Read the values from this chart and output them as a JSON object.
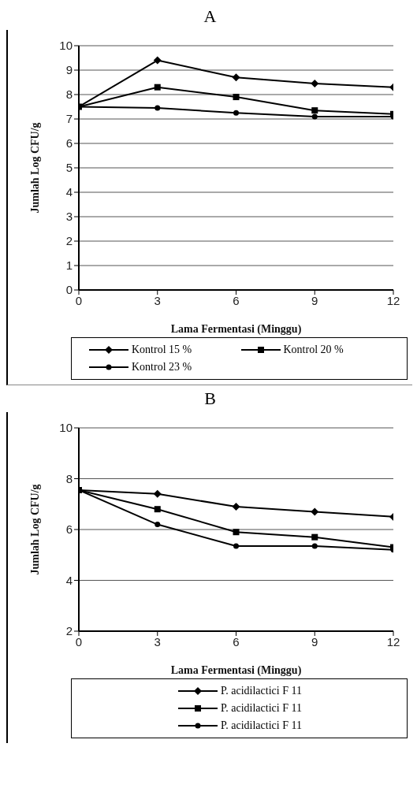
{
  "chart_data": [
    {
      "type": "line",
      "title": "A",
      "xlabel": "Lama Fermentasi (Minggu)",
      "ylabel": "Jumlah Log CFU/g",
      "x": [
        0,
        3,
        6,
        9,
        12
      ],
      "xlim": [
        0,
        12
      ],
      "xticks": [
        0,
        3,
        6,
        9,
        12
      ],
      "ylim": [
        0,
        10
      ],
      "yticks": [
        0,
        1,
        2,
        3,
        4,
        5,
        6,
        7,
        8,
        9,
        10
      ],
      "grid": "y",
      "legend": "bottom",
      "line_style": "solid",
      "series": [
        {
          "name": "Kontrol 15 %",
          "color": "#000000",
          "marker": "diamond",
          "values": [
            7.5,
            9.4,
            8.7,
            8.45,
            8.3
          ]
        },
        {
          "name": "Kontrol 20 %",
          "color": "#000000",
          "marker": "square",
          "values": [
            7.5,
            8.3,
            7.9,
            7.35,
            7.2
          ]
        },
        {
          "name": "Kontrol 23 %",
          "color": "#000000",
          "marker": "circle",
          "values": [
            7.5,
            7.45,
            7.25,
            7.1,
            7.1
          ]
        }
      ]
    },
    {
      "type": "line",
      "title": "B",
      "xlabel": "Lama Fermentasi (Minggu)",
      "ylabel": "Jumlah Log CFU/g",
      "x": [
        0,
        3,
        6,
        9,
        12
      ],
      "xlim": [
        0,
        12
      ],
      "xticks": [
        0,
        3,
        6,
        9,
        12
      ],
      "ylim": [
        2,
        10
      ],
      "yticks": [
        2,
        4,
        6,
        8,
        10
      ],
      "grid": "y",
      "legend": "bottom",
      "line_style": "solid",
      "series": [
        {
          "name": "P. acidilactici F 11",
          "color": "#000000",
          "marker": "diamond",
          "values": [
            7.55,
            7.4,
            6.9,
            6.7,
            6.5
          ]
        },
        {
          "name": "P. acidilactici F 11",
          "color": "#000000",
          "marker": "square",
          "values": [
            7.55,
            6.8,
            5.9,
            5.7,
            5.3
          ]
        },
        {
          "name": "P. acidilactici F 11",
          "color": "#000000",
          "marker": "circle",
          "values": [
            7.55,
            6.2,
            5.35,
            5.35,
            5.2
          ]
        }
      ]
    }
  ]
}
